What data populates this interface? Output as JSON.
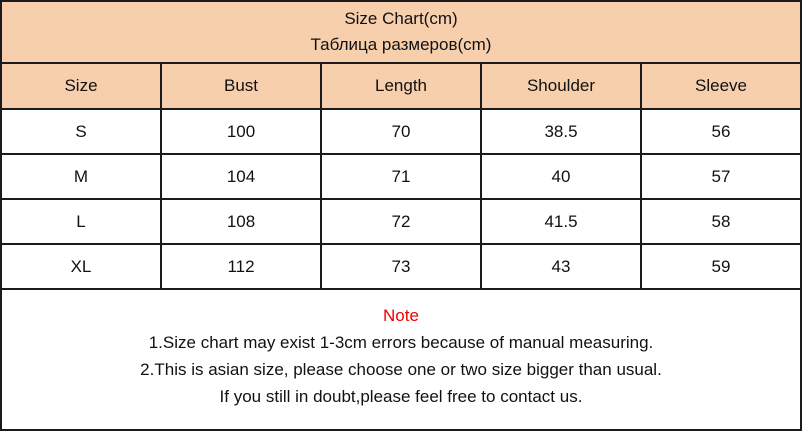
{
  "colors": {
    "header_bg": "#f7cfad",
    "border": "#1b1b1b",
    "note_red": "#ee0000",
    "text": "#111111"
  },
  "title": {
    "line1": "Size Chart(cm)",
    "line2": "Таблица размеров(cm)"
  },
  "chart_data": {
    "type": "table",
    "title": "Size Chart(cm) / Таблица размеров(cm)",
    "columns": [
      "Size",
      "Bust",
      "Length",
      "Shoulder",
      "Sleeve"
    ],
    "rows": [
      [
        "S",
        "100",
        "70",
        "38.5",
        "56"
      ],
      [
        "M",
        "104",
        "71",
        "40",
        "57"
      ],
      [
        "L",
        "108",
        "72",
        "41.5",
        "58"
      ],
      [
        "XL",
        "112",
        "73",
        "43",
        "59"
      ]
    ]
  },
  "note": {
    "title": "Note",
    "lines": [
      "1.Size chart may exist 1-3cm errors because of manual measuring.",
      "2.This is asian size, please choose one or two size bigger than usual.",
      "If you still in doubt,please feel free to contact us."
    ]
  }
}
